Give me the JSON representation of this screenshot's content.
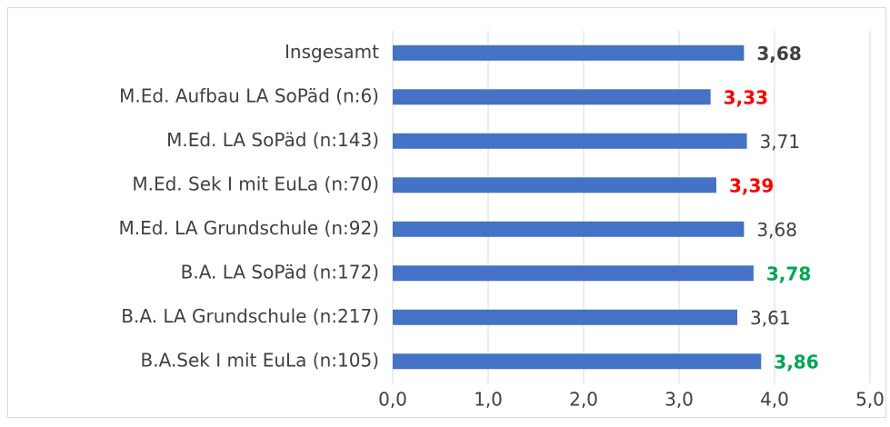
{
  "chart_data": {
    "type": "barh",
    "categories": [
      "Insgesamt",
      "M.Ed. Aufbau LA SoPäd (n:6)",
      "M.Ed. LA SoPäd (n:143)",
      "M.Ed. Sek I mit EuLa (n:70)",
      "M.Ed. LA Grundschule (n:92)",
      "B.A. LA SoPäd (n:172)",
      "B.A. LA Grundschule (n:217)",
      "B.A.Sek I mit EuLa (n:105)"
    ],
    "values": [
      3.68,
      3.33,
      3.71,
      3.39,
      3.68,
      3.78,
      3.61,
      3.86
    ],
    "value_labels": [
      "3,68",
      "3,33",
      "3,71",
      "3,39",
      "3,68",
      "3,78",
      "3,61",
      "3,86"
    ],
    "value_label_colors": [
      "#404040",
      "#ff0000",
      "#404040",
      "#ff0000",
      "#404040",
      "#00a650",
      "#404040",
      "#00a650"
    ],
    "value_label_bold": [
      true,
      true,
      false,
      true,
      false,
      true,
      false,
      true
    ],
    "color": "#4472c4",
    "xlim": [
      0,
      5
    ],
    "xticks": [
      {
        "value": 0,
        "label": "0,0"
      },
      {
        "value": 1,
        "label": "1,0"
      },
      {
        "value": 2,
        "label": "2,0"
      },
      {
        "value": 3,
        "label": "3,0"
      },
      {
        "value": 4,
        "label": "4,0"
      },
      {
        "value": 5,
        "label": "5,0"
      }
    ],
    "grid": true
  }
}
